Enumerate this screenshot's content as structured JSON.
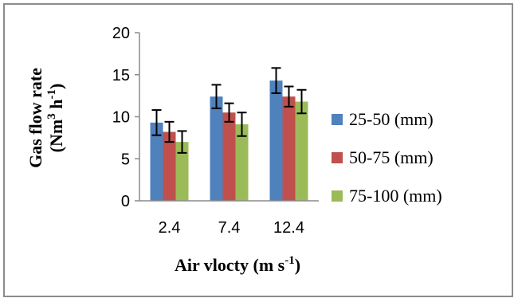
{
  "chart_data": {
    "type": "bar",
    "title": "",
    "categories": [
      "2.4",
      "7.4",
      "12.4"
    ],
    "series": [
      {
        "name": "25-50 (mm)",
        "color": "#4f81bd",
        "values": [
          9.3,
          12.4,
          14.3
        ],
        "errors": [
          1.5,
          1.4,
          1.5
        ]
      },
      {
        "name": "50-75 (mm)",
        "color": "#c0504d",
        "values": [
          8.2,
          10.5,
          12.4
        ],
        "errors": [
          1.2,
          1.1,
          1.2
        ]
      },
      {
        "name": "75-100 (mm)",
        "color": "#9bbb59",
        "values": [
          7.0,
          9.1,
          11.8
        ],
        "errors": [
          1.3,
          1.4,
          1.4
        ]
      }
    ],
    "yticks": [
      "0",
      "5",
      "10",
      "15",
      "20"
    ],
    "ylim": [
      0,
      20
    ],
    "xlabel": {
      "main": "Air vlocty (m s",
      "sup": "-1",
      "end": ")"
    },
    "ylabel": {
      "line1": "Gas flow rate",
      "line2_main": "(Nm",
      "line2_sup1": "3",
      "line2_mid": " h",
      "line2_sup2": "-1",
      "line2_end": ")"
    },
    "grid": false,
    "legend_position": "right"
  }
}
